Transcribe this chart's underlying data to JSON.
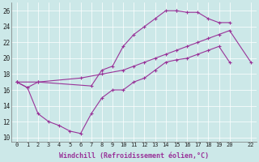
{
  "xlabel": "Windchill (Refroidissement éolien,°C)",
  "bg_color": "#cce8e8",
  "line_color": "#993399",
  "xlim": [
    -0.5,
    22.5
  ],
  "ylim": [
    9.5,
    27.0
  ],
  "xticks": [
    0,
    1,
    2,
    3,
    4,
    5,
    6,
    7,
    8,
    9,
    10,
    11,
    12,
    13,
    14,
    15,
    16,
    17,
    18,
    19,
    20,
    22
  ],
  "yticks": [
    10,
    12,
    14,
    16,
    18,
    20,
    22,
    24,
    26
  ],
  "series1_x": [
    0,
    1,
    2,
    7,
    8,
    9,
    10,
    11,
    12,
    13,
    14,
    15,
    15,
    16,
    17,
    18,
    19,
    20
  ],
  "series1_y": [
    17.0,
    16.3,
    17.0,
    16.5,
    18.5,
    19.0,
    21.5,
    23.0,
    24.0,
    25.0,
    26.0,
    26.0,
    26.0,
    25.8,
    25.8,
    25.0,
    24.5,
    24.5
  ],
  "series2_x": [
    0,
    2,
    6,
    8,
    10,
    11,
    12,
    13,
    14,
    15,
    16,
    17,
    18,
    19,
    20,
    22
  ],
  "series2_y": [
    17.0,
    17.0,
    17.5,
    18.0,
    18.5,
    19.0,
    19.5,
    20.0,
    20.5,
    21.0,
    21.5,
    22.0,
    22.5,
    23.0,
    23.5,
    19.5
  ],
  "series3_x": [
    0,
    1,
    2,
    3,
    4,
    5,
    6,
    7,
    8,
    9,
    10,
    11,
    12,
    13,
    14,
    15,
    16,
    17,
    18,
    19,
    20
  ],
  "series3_y": [
    17.0,
    16.3,
    13.0,
    12.0,
    11.5,
    10.8,
    10.5,
    13.0,
    15.0,
    16.0,
    16.0,
    17.0,
    17.5,
    18.5,
    19.5,
    19.8,
    20.0,
    20.5,
    21.0,
    21.5,
    19.5
  ]
}
